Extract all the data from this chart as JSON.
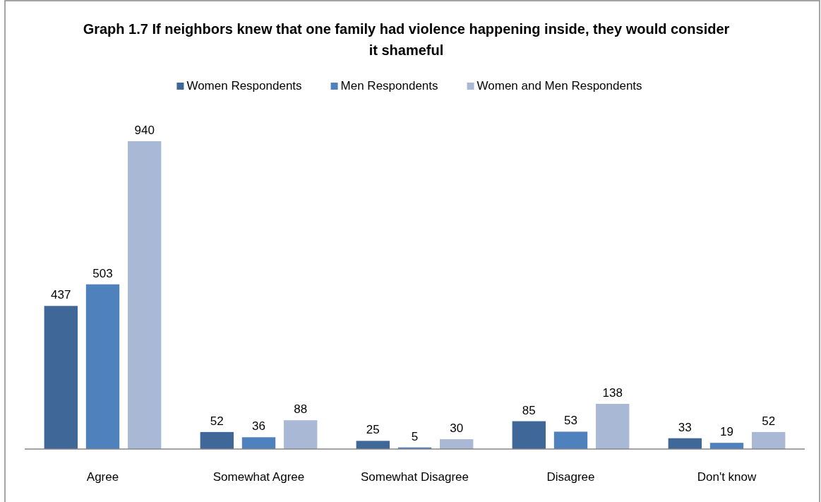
{
  "chart_data": {
    "type": "bar",
    "title": "Graph 1.7 If neighbors knew that one family had violence happening inside, they would consider it shameful",
    "categories": [
      "Agree",
      "Somewhat Agree",
      "Somewhat Disagree",
      "Disagree",
      "Don't know"
    ],
    "series": [
      {
        "name": "Women Respondents",
        "color": "#3f6797",
        "values": [
          437,
          52,
          25,
          85,
          33
        ]
      },
      {
        "name": "Men Respondents",
        "color": "#4f81bd",
        "values": [
          503,
          36,
          5,
          53,
          19
        ]
      },
      {
        "name": "Women and Men Respondents",
        "color": "#a9b9d5",
        "values": [
          940,
          88,
          30,
          138,
          52
        ]
      }
    ],
    "data_labels": true,
    "legend": "top",
    "grid": false
  }
}
